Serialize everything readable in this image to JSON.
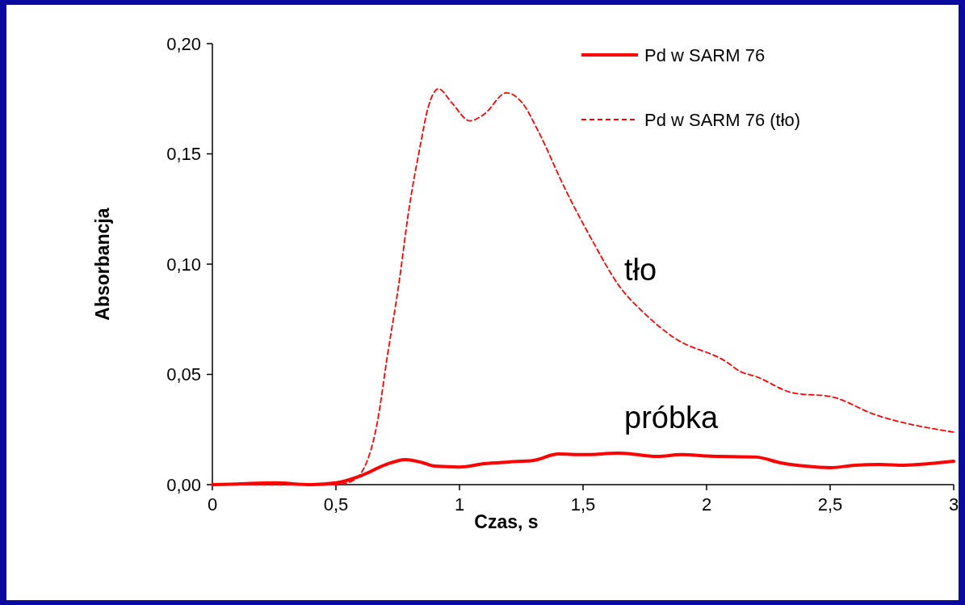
{
  "chart_data": {
    "type": "line",
    "xlabel": "Czas, s",
    "ylabel": "Absorbancja",
    "xlim": [
      0,
      3
    ],
    "ylim": [
      0,
      0.2
    ],
    "xticks": [
      0,
      {
        "value": 0.5,
        "label": "0,5"
      },
      1,
      {
        "value": 1.5,
        "label": "1,5"
      },
      2,
      {
        "value": 2.5,
        "label": "2,5"
      },
      3
    ],
    "yticks": [
      {
        "value": 0,
        "label": "0,00"
      },
      {
        "value": 0.05,
        "label": "0,05"
      },
      {
        "value": 0.1,
        "label": "0,10"
      },
      {
        "value": 0.15,
        "label": "0,15"
      },
      {
        "value": 0.2,
        "label": "0,20"
      }
    ],
    "grid": false,
    "legend": "top right",
    "annotations": [
      "tło",
      "próbka"
    ],
    "series": [
      {
        "name": "Pd w SARM 76",
        "color": "#ff0000",
        "line_style": "solid",
        "x": [
          0,
          0.1,
          0.25,
          0.4,
          0.5,
          0.6,
          0.7,
          0.78,
          0.85,
          0.9,
          1,
          1.1,
          1.2,
          1.3,
          1.4,
          1.5,
          1.65,
          1.8,
          1.9,
          2,
          2.2,
          2.3,
          2.4,
          2.5,
          2.6,
          2.7,
          2.8,
          2.9,
          3
        ],
        "values": [
          0,
          0.0003,
          0.0008,
          0,
          0.0008,
          0.004,
          0.009,
          0.0114,
          0.01,
          0.0084,
          0.008,
          0.0095,
          0.0103,
          0.011,
          0.0139,
          0.0136,
          0.0143,
          0.0128,
          0.0136,
          0.013,
          0.0125,
          0.0099,
          0.0084,
          0.0077,
          0.0088,
          0.0092,
          0.0088,
          0.0095,
          0.0106
        ]
      },
      {
        "name": "Pd w SARM 76 (tło)",
        "color": "#ff0000",
        "line_style": "dashed",
        "x": [
          0,
          0.2,
          0.4,
          0.5,
          0.55,
          0.6,
          0.667,
          0.709,
          0.752,
          0.797,
          0.84,
          0.873,
          0.915,
          0.97,
          1.042,
          1.1,
          1.19,
          1.255,
          1.32,
          1.428,
          1.536,
          1.647,
          1.755,
          1.863,
          2.08,
          2.137,
          2.2,
          2.353,
          2.5,
          2.68,
          3
        ],
        "values": [
          0,
          0,
          0,
          0,
          0.001,
          0.005,
          0.028,
          0.059,
          0.089,
          0.126,
          0.153,
          0.171,
          0.1795,
          0.173,
          0.165,
          0.168,
          0.1777,
          0.173,
          0.16,
          0.134,
          0.111,
          0.09,
          0.077,
          0.067,
          0.0557,
          0.0513,
          0.049,
          0.0415,
          0.04,
          0.0318,
          0.0238
        ]
      }
    ]
  }
}
